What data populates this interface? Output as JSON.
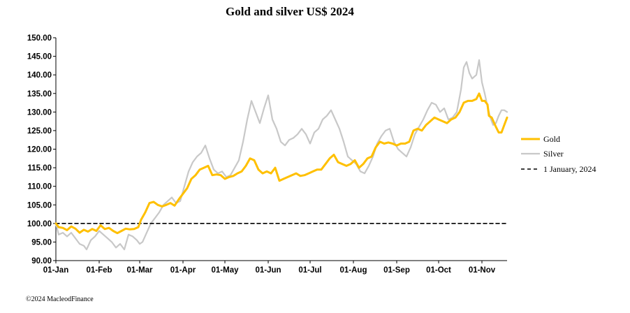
{
  "chart_data": {
    "type": "line",
    "title": "Gold and silver  US$ 2024",
    "xlabel": "",
    "ylabel": "",
    "ylim": [
      90,
      150
    ],
    "yticks": [
      "90.00",
      "95.00",
      "100.00",
      "105.00",
      "110.00",
      "115.00",
      "120.00",
      "125.00",
      "130.00",
      "135.00",
      "140.00",
      "145.00",
      "150.00"
    ],
    "xticks": [
      "01-Jan",
      "01-Feb",
      "01-Mar",
      "01-Apr",
      "01-May",
      "01-Jun",
      "01-Jul",
      "01-Aug",
      "01-Sep",
      "01-Oct",
      "01-Nov"
    ],
    "x_start": "2024-01-01",
    "x_end": "2024-11-19",
    "grid": false,
    "legend_position": "right",
    "series": [
      {
        "name": "Gold",
        "color": "#FFC000",
        "points": [
          [
            "2024-01-01",
            100.0
          ],
          [
            "2024-01-03",
            99.0
          ],
          [
            "2024-01-06",
            98.8
          ],
          [
            "2024-01-09",
            98.2
          ],
          [
            "2024-01-12",
            99.2
          ],
          [
            "2024-01-15",
            98.6
          ],
          [
            "2024-01-18",
            97.5
          ],
          [
            "2024-01-21",
            98.3
          ],
          [
            "2024-01-24",
            97.8
          ],
          [
            "2024-01-27",
            98.5
          ],
          [
            "2024-01-30",
            98.0
          ],
          [
            "2024-02-02",
            99.5
          ],
          [
            "2024-02-05",
            98.5
          ],
          [
            "2024-02-08",
            98.8
          ],
          [
            "2024-02-11",
            98.0
          ],
          [
            "2024-02-14",
            97.4
          ],
          [
            "2024-02-17",
            98.0
          ],
          [
            "2024-02-20",
            98.6
          ],
          [
            "2024-02-23",
            98.4
          ],
          [
            "2024-02-26",
            98.5
          ],
          [
            "2024-02-29",
            99.0
          ],
          [
            "2024-03-02",
            101.0
          ],
          [
            "2024-03-05",
            103.0
          ],
          [
            "2024-03-08",
            105.5
          ],
          [
            "2024-03-11",
            105.8
          ],
          [
            "2024-03-14",
            105.0
          ],
          [
            "2024-03-17",
            104.6
          ],
          [
            "2024-03-20",
            105.0
          ],
          [
            "2024-03-23",
            105.5
          ],
          [
            "2024-03-26",
            104.8
          ],
          [
            "2024-03-29",
            106.5
          ],
          [
            "2024-04-01",
            108.0
          ],
          [
            "2024-04-04",
            109.5
          ],
          [
            "2024-04-07",
            112.0
          ],
          [
            "2024-04-10",
            113.0
          ],
          [
            "2024-04-13",
            114.5
          ],
          [
            "2024-04-16",
            115.0
          ],
          [
            "2024-04-19",
            115.5
          ],
          [
            "2024-04-22",
            113.0
          ],
          [
            "2024-04-25",
            113.2
          ],
          [
            "2024-04-28",
            113.0
          ],
          [
            "2024-05-01",
            112.0
          ],
          [
            "2024-05-04",
            112.5
          ],
          [
            "2024-05-07",
            112.8
          ],
          [
            "2024-05-10",
            113.5
          ],
          [
            "2024-05-13",
            114.0
          ],
          [
            "2024-05-16",
            115.5
          ],
          [
            "2024-05-19",
            117.5
          ],
          [
            "2024-05-22",
            117.0
          ],
          [
            "2024-05-25",
            114.5
          ],
          [
            "2024-05-28",
            113.5
          ],
          [
            "2024-05-31",
            114.0
          ],
          [
            "2024-06-03",
            113.5
          ],
          [
            "2024-06-06",
            115.0
          ],
          [
            "2024-06-09",
            111.5
          ],
          [
            "2024-06-12",
            112.0
          ],
          [
            "2024-06-15",
            112.5
          ],
          [
            "2024-06-18",
            113.0
          ],
          [
            "2024-06-21",
            113.5
          ],
          [
            "2024-06-24",
            112.8
          ],
          [
            "2024-06-27",
            113.0
          ],
          [
            "2024-06-30",
            113.5
          ],
          [
            "2024-07-03",
            114.0
          ],
          [
            "2024-07-06",
            114.5
          ],
          [
            "2024-07-09",
            114.5
          ],
          [
            "2024-07-12",
            116.0
          ],
          [
            "2024-07-15",
            117.5
          ],
          [
            "2024-07-18",
            118.5
          ],
          [
            "2024-07-21",
            116.5
          ],
          [
            "2024-07-24",
            116.0
          ],
          [
            "2024-07-27",
            115.5
          ],
          [
            "2024-07-30",
            116.0
          ],
          [
            "2024-08-02",
            117.0
          ],
          [
            "2024-08-05",
            115.0
          ],
          [
            "2024-08-08",
            116.0
          ],
          [
            "2024-08-11",
            117.5
          ],
          [
            "2024-08-14",
            118.0
          ],
          [
            "2024-08-17",
            120.5
          ],
          [
            "2024-08-20",
            122.0
          ],
          [
            "2024-08-23",
            121.5
          ],
          [
            "2024-08-26",
            121.8
          ],
          [
            "2024-08-29",
            121.5
          ],
          [
            "2024-09-01",
            121.0
          ],
          [
            "2024-09-04",
            121.5
          ],
          [
            "2024-09-07",
            121.5
          ],
          [
            "2024-09-10",
            122.0
          ],
          [
            "2024-09-13",
            125.0
          ],
          [
            "2024-09-16",
            125.5
          ],
          [
            "2024-09-19",
            125.0
          ],
          [
            "2024-09-22",
            126.5
          ],
          [
            "2024-09-25",
            127.5
          ],
          [
            "2024-09-28",
            128.5
          ],
          [
            "2024-10-01",
            128.0
          ],
          [
            "2024-10-04",
            127.5
          ],
          [
            "2024-10-07",
            127.0
          ],
          [
            "2024-10-10",
            128.0
          ],
          [
            "2024-10-13",
            128.5
          ],
          [
            "2024-10-16",
            130.0
          ],
          [
            "2024-10-19",
            132.5
          ],
          [
            "2024-10-22",
            133.0
          ],
          [
            "2024-10-25",
            133.0
          ],
          [
            "2024-10-28",
            133.5
          ],
          [
            "2024-10-30",
            135.0
          ],
          [
            "2024-11-01",
            133.0
          ],
          [
            "2024-11-03",
            133.0
          ],
          [
            "2024-11-05",
            132.0
          ],
          [
            "2024-11-06",
            129.0
          ],
          [
            "2024-11-08",
            128.5
          ],
          [
            "2024-11-11",
            126.0
          ],
          [
            "2024-11-13",
            124.5
          ],
          [
            "2024-11-15",
            124.5
          ],
          [
            "2024-11-17",
            126.5
          ],
          [
            "2024-11-19",
            128.5
          ]
        ]
      },
      {
        "name": "Silver",
        "color": "#C8C8C8",
        "points": [
          [
            "2024-01-01",
            100.0
          ],
          [
            "2024-01-03",
            97.0
          ],
          [
            "2024-01-06",
            97.5
          ],
          [
            "2024-01-09",
            96.5
          ],
          [
            "2024-01-12",
            97.5
          ],
          [
            "2024-01-15",
            96.0
          ],
          [
            "2024-01-18",
            94.5
          ],
          [
            "2024-01-21",
            94.0
          ],
          [
            "2024-01-23",
            93.0
          ],
          [
            "2024-01-26",
            95.5
          ],
          [
            "2024-01-29",
            96.5
          ],
          [
            "2024-02-01",
            98.0
          ],
          [
            "2024-02-04",
            97.0
          ],
          [
            "2024-02-07",
            96.0
          ],
          [
            "2024-02-10",
            95.0
          ],
          [
            "2024-02-13",
            93.5
          ],
          [
            "2024-02-16",
            94.5
          ],
          [
            "2024-02-19",
            93.0
          ],
          [
            "2024-02-22",
            97.0
          ],
          [
            "2024-02-25",
            96.5
          ],
          [
            "2024-02-28",
            95.5
          ],
          [
            "2024-03-01",
            94.5
          ],
          [
            "2024-03-03",
            95.0
          ],
          [
            "2024-03-06",
            97.5
          ],
          [
            "2024-03-09",
            100.0
          ],
          [
            "2024-03-12",
            101.5
          ],
          [
            "2024-03-15",
            103.0
          ],
          [
            "2024-03-18",
            105.0
          ],
          [
            "2024-03-21",
            106.0
          ],
          [
            "2024-03-24",
            107.0
          ],
          [
            "2024-03-27",
            105.5
          ],
          [
            "2024-03-30",
            106.0
          ],
          [
            "2024-04-02",
            110.0
          ],
          [
            "2024-04-05",
            114.0
          ],
          [
            "2024-04-08",
            116.5
          ],
          [
            "2024-04-11",
            118.0
          ],
          [
            "2024-04-14",
            119.0
          ],
          [
            "2024-04-17",
            121.0
          ],
          [
            "2024-04-20",
            117.5
          ],
          [
            "2024-04-23",
            114.5
          ],
          [
            "2024-04-26",
            113.5
          ],
          [
            "2024-04-29",
            114.0
          ],
          [
            "2024-05-02",
            112.5
          ],
          [
            "2024-05-05",
            113.0
          ],
          [
            "2024-05-08",
            115.0
          ],
          [
            "2024-05-11",
            117.0
          ],
          [
            "2024-05-14",
            122.0
          ],
          [
            "2024-05-17",
            128.0
          ],
          [
            "2024-05-20",
            133.0
          ],
          [
            "2024-05-23",
            130.0
          ],
          [
            "2024-05-26",
            127.0
          ],
          [
            "2024-05-29",
            131.0
          ],
          [
            "2024-06-01",
            134.5
          ],
          [
            "2024-06-04",
            128.0
          ],
          [
            "2024-06-07",
            125.5
          ],
          [
            "2024-06-10",
            122.0
          ],
          [
            "2024-06-13",
            121.0
          ],
          [
            "2024-06-16",
            122.5
          ],
          [
            "2024-06-19",
            123.0
          ],
          [
            "2024-06-22",
            124.0
          ],
          [
            "2024-06-25",
            125.5
          ],
          [
            "2024-06-28",
            124.0
          ],
          [
            "2024-07-01",
            121.5
          ],
          [
            "2024-07-04",
            124.5
          ],
          [
            "2024-07-07",
            125.5
          ],
          [
            "2024-07-10",
            128.0
          ],
          [
            "2024-07-13",
            129.0
          ],
          [
            "2024-07-16",
            130.5
          ],
          [
            "2024-07-19",
            128.0
          ],
          [
            "2024-07-22",
            125.5
          ],
          [
            "2024-07-25",
            122.0
          ],
          [
            "2024-07-28",
            118.0
          ],
          [
            "2024-07-31",
            117.0
          ],
          [
            "2024-08-03",
            116.0
          ],
          [
            "2024-08-06",
            114.0
          ],
          [
            "2024-08-09",
            113.5
          ],
          [
            "2024-08-12",
            115.5
          ],
          [
            "2024-08-15",
            118.0
          ],
          [
            "2024-08-18",
            121.5
          ],
          [
            "2024-08-21",
            123.5
          ],
          [
            "2024-08-24",
            125.0
          ],
          [
            "2024-08-27",
            125.5
          ],
          [
            "2024-08-30",
            122.0
          ],
          [
            "2024-09-02",
            120.0
          ],
          [
            "2024-09-05",
            119.0
          ],
          [
            "2024-09-08",
            118.0
          ],
          [
            "2024-09-11",
            120.5
          ],
          [
            "2024-09-14",
            124.0
          ],
          [
            "2024-09-17",
            126.0
          ],
          [
            "2024-09-20",
            128.0
          ],
          [
            "2024-09-23",
            130.5
          ],
          [
            "2024-09-26",
            132.5
          ],
          [
            "2024-09-29",
            132.0
          ],
          [
            "2024-10-02",
            130.0
          ],
          [
            "2024-10-05",
            131.0
          ],
          [
            "2024-10-08",
            128.0
          ],
          [
            "2024-10-11",
            128.5
          ],
          [
            "2024-10-14",
            130.0
          ],
          [
            "2024-10-17",
            136.0
          ],
          [
            "2024-10-19",
            142.0
          ],
          [
            "2024-10-21",
            143.5
          ],
          [
            "2024-10-23",
            140.5
          ],
          [
            "2024-10-25",
            139.0
          ],
          [
            "2024-10-28",
            140.0
          ],
          [
            "2024-10-30",
            144.0
          ],
          [
            "2024-11-01",
            138.0
          ],
          [
            "2024-11-03",
            135.0
          ],
          [
            "2024-11-05",
            131.5
          ],
          [
            "2024-11-07",
            128.5
          ],
          [
            "2024-11-09",
            126.5
          ],
          [
            "2024-11-11",
            127.0
          ],
          [
            "2024-11-13",
            129.0
          ],
          [
            "2024-11-15",
            130.5
          ],
          [
            "2024-11-17",
            130.5
          ],
          [
            "2024-11-19",
            130.0
          ]
        ]
      },
      {
        "name": "1 January, 2024",
        "color": "#000000",
        "style": "dashed",
        "points": [
          [
            "2024-01-01",
            100.0
          ],
          [
            "2024-11-19",
            100.0
          ]
        ]
      }
    ]
  },
  "copyright": "©2024 MacleodFinance"
}
